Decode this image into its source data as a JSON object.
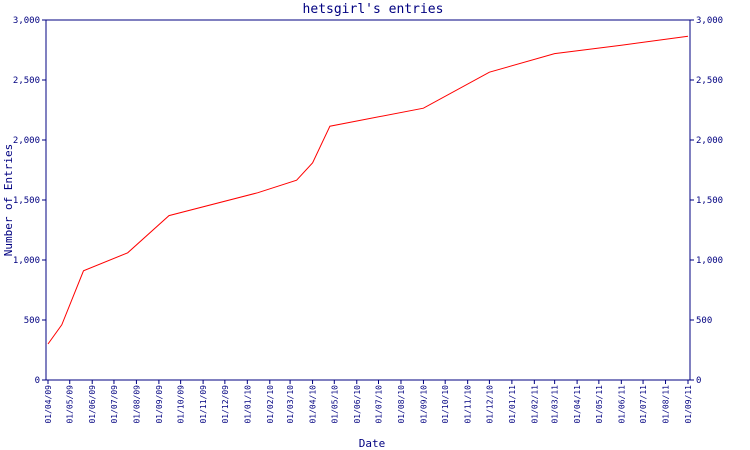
{
  "chart_data": {
    "type": "line",
    "title": "hetsgirl's entries",
    "xlabel": "Date",
    "ylabel": "Number of Entries",
    "ylim": [
      0,
      3000
    ],
    "yticks": [
      0,
      500,
      1000,
      1500,
      2000,
      2500,
      3000
    ],
    "ytick_labels": [
      "0",
      "500",
      "1,000",
      "1,500",
      "2,000",
      "2,500",
      "3,000"
    ],
    "xticks": [
      "01/04/09",
      "01/05/09",
      "01/06/09",
      "01/07/09",
      "01/08/09",
      "01/09/09",
      "01/10/09",
      "01/11/09",
      "01/12/09",
      "01/01/10",
      "01/02/10",
      "01/03/10",
      "01/04/10",
      "01/05/10",
      "01/06/10",
      "01/07/10",
      "01/08/10",
      "01/09/10",
      "01/10/10",
      "01/11/10",
      "01/12/10",
      "01/01/11",
      "01/02/11",
      "01/03/11",
      "01/04/11",
      "01/05/11",
      "01/06/11",
      "01/07/11",
      "01/08/11",
      "01/09/11"
    ],
    "grid": false,
    "line_color": "#ff0000",
    "axis_color": "#000080",
    "series": [
      {
        "x": [
          "2009-04-01",
          "2009-04-20",
          "2009-05-20",
          "2009-07-20",
          "2009-09-15",
          "2010-01-15",
          "2010-03-10",
          "2010-04-01",
          "2010-04-25",
          "2010-09-01",
          "2010-12-01",
          "2011-03-01",
          "2011-06-01",
          "2011-09-01"
        ],
        "values": [
          300,
          460,
          910,
          1060,
          1370,
          1560,
          1665,
          1810,
          2115,
          2265,
          2565,
          2720,
          2790,
          2865
        ]
      }
    ]
  }
}
